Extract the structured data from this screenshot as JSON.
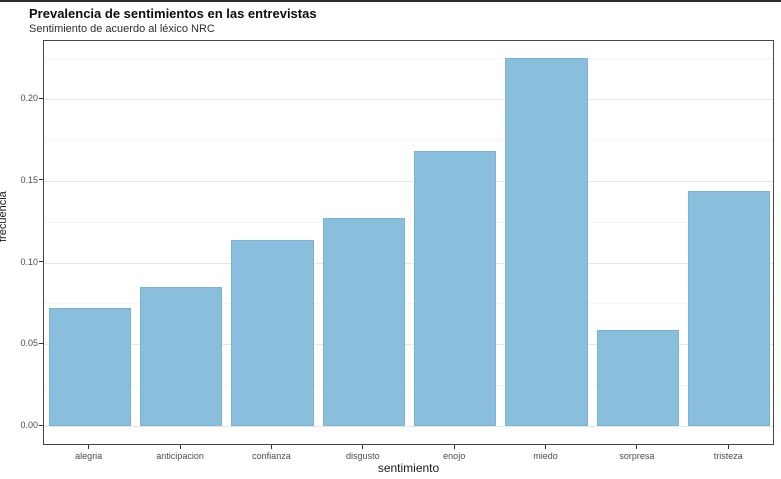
{
  "figure": {
    "top_border_color": "#2e2e2e",
    "background_color": "#ffffff"
  },
  "chart_data": {
    "type": "bar",
    "title": "Prevalencia de sentimientos en las entrevistas",
    "subtitle": "Sentimiento de acuerdo al léxico NRC",
    "xlabel": "sentimiento",
    "ylabel": "frecuencia",
    "categories": [
      "alegria",
      "anticipacion",
      "confianza",
      "disgusto",
      "enojo",
      "miedo",
      "sorpresa",
      "tristeza"
    ],
    "values": [
      0.072,
      0.085,
      0.114,
      0.127,
      0.168,
      0.225,
      0.059,
      0.144
    ],
    "ytick_labels": [
      "0.00",
      "0.05",
      "0.10",
      "0.15",
      "0.20"
    ],
    "yticks": [
      0.0,
      0.05,
      0.1,
      0.15,
      0.2
    ],
    "minor_tick_step": 0.025,
    "ylim": [
      -0.0122,
      0.2355
    ],
    "grid": "major+minor on, horizontal only",
    "legend": "none",
    "bar_color": "#89bedc",
    "bar_border_color": "#79b4d3",
    "major_grid_color": "#e6e6e6",
    "minor_grid_color": "#f4f4f4",
    "panel_border_color": "#474747",
    "axis_text_color": "#4d4d4d"
  }
}
